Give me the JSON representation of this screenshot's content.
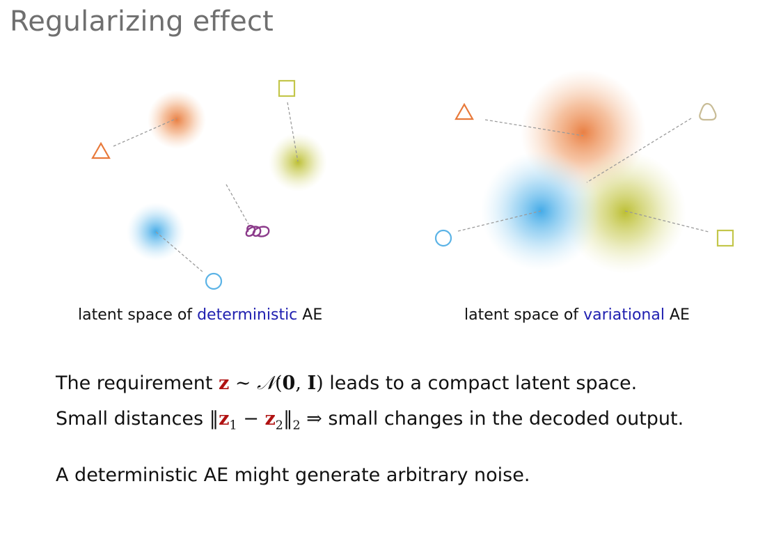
{
  "title": "Regularizing effect",
  "captions": {
    "left": {
      "prefix": "latent space of ",
      "highlight": "deterministic",
      "suffix": " AE"
    },
    "right": {
      "prefix": "latent space of ",
      "highlight": "variational",
      "suffix": " AE"
    }
  },
  "text": {
    "line1": {
      "prefix": "The requirement ",
      "z": "z",
      "sim": " ∼ ",
      "N": "𝒩",
      "open": "(",
      "zero": "0",
      "comma": ", ",
      "I": "I",
      "close": ")",
      "suffix": " leads to a compact latent space."
    },
    "line2": {
      "prefix": "Small distances ",
      "norm_open": "‖",
      "z1": "z",
      "sub1": "1",
      "minus": " − ",
      "z2": "z",
      "sub2": "2",
      "norm_close": "‖",
      "sub_norm": "2",
      "implies": " ⇒ ",
      "suffix": "small changes in the decoded output."
    },
    "line3": "A deterministic AE might generate arbitrary noise."
  },
  "colors": {
    "orange": "#e8793a",
    "blue": "#5bb3e6",
    "olive": "#c3c64a",
    "purple": "#8b3a8a",
    "beige": "#c8bc96",
    "highlight": "#2020b0",
    "z_red": "#b01212"
  },
  "icons": {
    "triangle": "triangle-icon",
    "square": "square-icon",
    "circle": "circle-icon",
    "blob": "blob-icon",
    "scribble": "scribble-icon"
  }
}
